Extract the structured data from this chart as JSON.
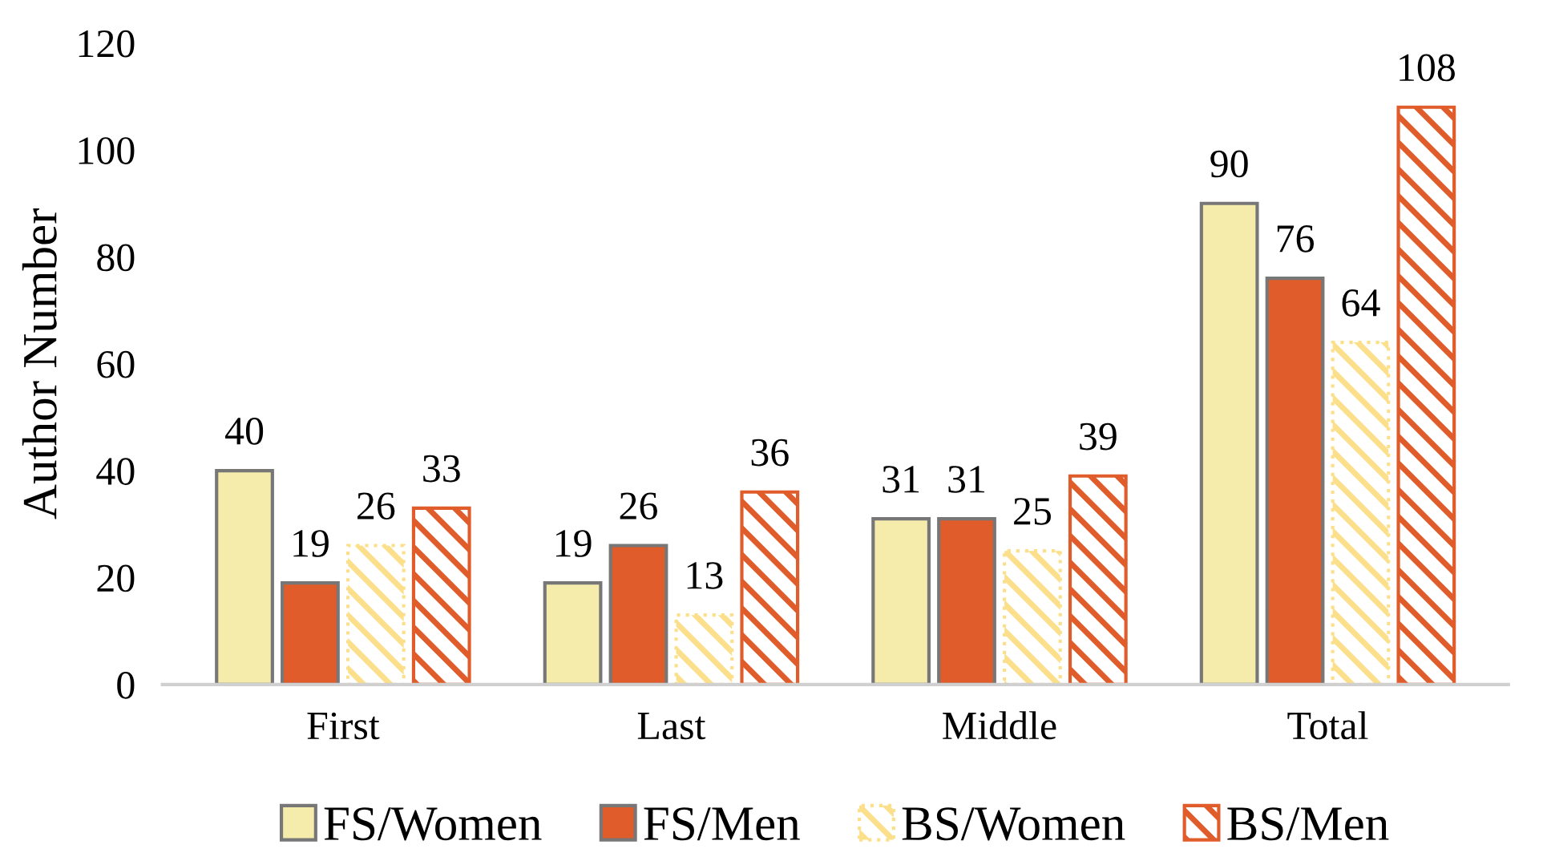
{
  "chart_data": {
    "type": "bar",
    "ylabel": "Author Number",
    "categories": [
      "First",
      "Last",
      "Middle",
      "Total"
    ],
    "series": [
      {
        "name": "FS/Women",
        "color": "#f5ebab",
        "values": [
          40,
          19,
          31,
          90
        ]
      },
      {
        "name": "FS/Men",
        "color": "#e05c2b",
        "values": [
          19,
          26,
          31,
          76
        ]
      },
      {
        "name": "BS/Women",
        "color": "#fbdf8a",
        "values": [
          26,
          13,
          25,
          64
        ]
      },
      {
        "name": "BS/Men",
        "color": "#e05c2b",
        "values": [
          33,
          36,
          39,
          108
        ]
      }
    ],
    "ylim": [
      0,
      120
    ],
    "yticks": [
      0,
      20,
      40,
      60,
      80,
      100,
      120
    ],
    "data_labels": true,
    "grid": false,
    "legend": "bottom"
  }
}
